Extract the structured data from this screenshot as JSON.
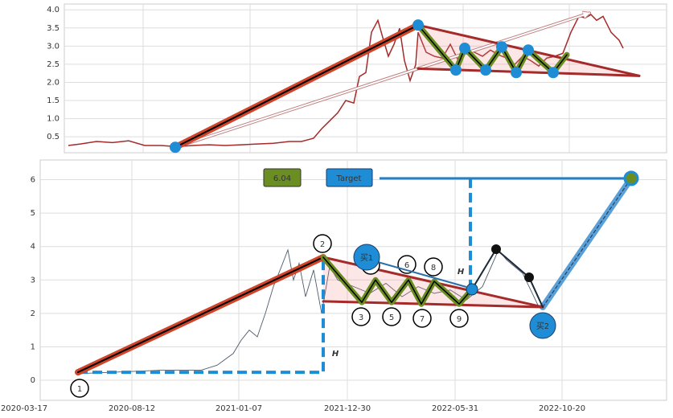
{
  "chart_data": [
    {
      "type": "line",
      "color": "#a52a2a",
      "x": [
        5,
        20,
        40,
        60,
        80,
        100,
        120,
        140,
        160,
        180,
        200,
        220,
        240,
        260,
        280,
        295,
        310,
        320,
        330,
        340,
        350,
        360,
        367,
        375,
        382,
        390,
        397,
        403,
        410,
        417,
        423,
        430,
        437,
        440,
        450,
        460,
        470,
        480,
        490,
        500,
        510,
        520,
        530,
        540,
        550,
        560,
        570,
        580,
        590,
        600,
        610,
        620,
        630,
        640,
        648,
        655,
        662,
        670,
        680,
        690,
        695
      ],
      "values": [
        0.26,
        0.3,
        0.37,
        0.34,
        0.39,
        0.26,
        0.26,
        0.23,
        0.26,
        0.28,
        0.26,
        0.28,
        0.3,
        0.32,
        0.37,
        0.37,
        0.46,
        0.72,
        0.94,
        1.16,
        1.5,
        1.43,
        2.16,
        2.27,
        3.38,
        3.71,
        3.16,
        2.72,
        3.05,
        3.49,
        2.6,
        2.05,
        2.49,
        3.38,
        2.83,
        2.72,
        2.67,
        3.05,
        2.6,
        2.94,
        2.83,
        2.72,
        2.89,
        2.76,
        2.67,
        2.49,
        2.72,
        2.6,
        2.45,
        2.67,
        2.72,
        2.8,
        3.38,
        3.82,
        3.78,
        3.87,
        3.71,
        3.82,
        3.38,
        3.16,
        2.94
      ],
      "xlim": [
        0,
        749
      ],
      "ylim": [
        0.06,
        4.16
      ],
      "yticks": [
        0.5,
        {
          "value": 1,
          "label": "1.0"
        },
        1.5,
        {
          "value": 2,
          "label": "2.0"
        },
        2.5,
        {
          "value": 3,
          "label": "3.0"
        },
        3.5,
        {
          "value": 4,
          "label": "4.0"
        }
      ],
      "xgrid": [
        98,
        231,
        364,
        496,
        628
      ],
      "grid": true,
      "projection": {
        "x": [
          138,
          653
        ],
        "y": [
          0.21,
          3.91
        ]
      },
      "trend_line": {
        "x": [
          138,
          440
        ],
        "y": [
          0.21,
          3.58
        ]
      },
      "wedge_upper": {
        "x": [
          440,
          715
        ],
        "y": [
          3.58,
          2.18
        ]
      },
      "wedge_lower": {
        "x": [
          440,
          715
        ],
        "y": [
          2.38,
          2.18
        ]
      },
      "zigzag": {
        "x": [
          440,
          487,
          498,
          524,
          544,
          562,
          577,
          608,
          625
        ],
        "y": [
          3.58,
          2.34,
          2.94,
          2.34,
          2.98,
          2.27,
          2.89,
          2.27,
          2.76
        ]
      },
      "pivots": {
        "x": [
          138,
          440,
          487,
          498,
          524,
          544,
          562,
          577,
          608
        ],
        "y": [
          0.21,
          3.58,
          2.34,
          2.94,
          2.34,
          2.98,
          2.27,
          2.89,
          2.27
        ]
      }
    },
    {
      "type": "line",
      "color": "#4d5b6b",
      "x": [
        70,
        120,
        170,
        220,
        240,
        260,
        270,
        280,
        290,
        300,
        310,
        320,
        328,
        335,
        342,
        350,
        360,
        370,
        380,
        390,
        410,
        430,
        450,
        470,
        490,
        510,
        530,
        550,
        570,
        590,
        600,
        620,
        640
      ],
      "values": [
        0.2,
        0.25,
        0.3,
        0.3,
        0.45,
        0.8,
        1.2,
        1.5,
        1.3,
        2.0,
        2.8,
        3.4,
        3.9,
        3.0,
        3.5,
        2.5,
        3.3,
        2.0,
        3.4,
        3.0,
        2.8,
        2.6,
        2.9,
        2.5,
        2.8,
        2.6,
        2.7,
        2.4,
        2.8,
        3.9,
        3.6,
        3.2,
        2.2
      ],
      "xlim": [
        20,
        799
      ],
      "ylim": [
        -0.6,
        6.59
      ],
      "xticks": [
        {
          "value": 0,
          "label": "2020-03-17"
        },
        {
          "value": 134,
          "label": "2020-08-12"
        },
        {
          "value": 267,
          "label": "2021-01-07"
        },
        {
          "value": 402,
          "label": "2021-12-30"
        },
        {
          "value": 536,
          "label": "2022-05-31"
        },
        {
          "value": 669,
          "label": "2022-10-20"
        }
      ],
      "yticks": [
        0,
        1,
        2,
        3,
        4,
        5,
        6
      ],
      "grid": true,
      "target": 6.04,
      "target_label": "Target",
      "target_line": {
        "x": [
          442,
          755
        ]
      },
      "target_guide": {
        "x": 555,
        "y": 2.75
      },
      "height_guide": {
        "x": [
          67,
          372,
          372
        ],
        "y": [
          0.24,
          0.24,
          3.68
        ]
      },
      "trend_line": {
        "x": [
          67,
          372
        ],
        "y": [
          0.24,
          3.68
        ]
      },
      "wedge_upper": {
        "x": [
          372,
          645
        ],
        "y": [
          3.68,
          2.19
        ]
      },
      "wedge_lower": {
        "x": [
          372,
          645
        ],
        "y": [
          2.36,
          2.19
        ]
      },
      "zigzag": {
        "x": [
          372,
          420,
          437,
          457,
          478,
          494,
          510,
          541,
          557
        ],
        "y": [
          3.68,
          2.33,
          3.0,
          2.33,
          3.0,
          2.28,
          2.96,
          2.28,
          2.72
        ]
      },
      "breakout": {
        "x": [
          557,
          587,
          628,
          645
        ],
        "y": [
          2.72,
          3.92,
          3.08,
          2.19
        ]
      },
      "projection": {
        "x": [
          645,
          755
        ],
        "y": [
          2.19,
          6.04
        ]
      },
      "pivot_labels": [
        "1",
        "2",
        "3",
        "4",
        "5",
        "6",
        "7",
        "8",
        "9"
      ],
      "buy_labels": [
        "买1",
        "买2"
      ],
      "height_labels": [
        "H",
        "H"
      ]
    }
  ]
}
